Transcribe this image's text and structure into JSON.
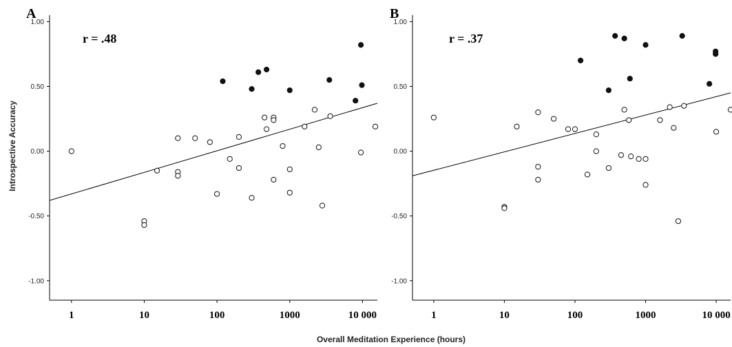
{
  "figure": {
    "ylabel": "Introspective Accuracy",
    "xlabel": "Overall Meditation Experience (hours)"
  },
  "chart_data": [
    {
      "type": "scatter",
      "panel_label": "A",
      "annotation": "r = .48",
      "x_scale": "log",
      "xlim": [
        0.5,
        16000
      ],
      "ylim": [
        -1.15,
        1.05
      ],
      "x_ticks": [
        1,
        10,
        100,
        1000,
        10000
      ],
      "x_tick_labels": [
        "1",
        "10",
        "100",
        "1000",
        "10 000"
      ],
      "y_ticks": [
        1.0,
        0.5,
        0.0,
        -0.5,
        -1.0
      ],
      "y_tick_labels": [
        "1.00",
        "0.50",
        "0.00",
        "-0.50",
        "-1.00"
      ],
      "grid": false,
      "regression_line": {
        "x": [
          0.5,
          16000
        ],
        "y": [
          -0.38,
          0.37
        ]
      },
      "series": [
        {
          "marker": "filled",
          "points": [
            [
              120,
              0.54
            ],
            [
              300,
              0.48
            ],
            [
              370,
              0.61
            ],
            [
              480,
              0.63
            ],
            [
              1000,
              0.47
            ],
            [
              3500,
              0.55
            ],
            [
              8000,
              0.39
            ],
            [
              9500,
              0.82
            ],
            [
              9800,
              0.51
            ]
          ]
        },
        {
          "marker": "open",
          "points": [
            [
              1,
              0.0
            ],
            [
              10,
              -0.54
            ],
            [
              10,
              -0.57
            ],
            [
              15,
              -0.15
            ],
            [
              29,
              0.1
            ],
            [
              29,
              -0.16
            ],
            [
              29,
              -0.19
            ],
            [
              50,
              0.1
            ],
            [
              80,
              0.07
            ],
            [
              100,
              -0.33
            ],
            [
              150,
              -0.06
            ],
            [
              200,
              0.11
            ],
            [
              200,
              -0.13
            ],
            [
              300,
              -0.36
            ],
            [
              450,
              0.26
            ],
            [
              480,
              0.17
            ],
            [
              600,
              0.26
            ],
            [
              600,
              0.24
            ],
            [
              600,
              -0.22
            ],
            [
              800,
              0.04
            ],
            [
              1000,
              -0.14
            ],
            [
              1000,
              -0.32
            ],
            [
              1600,
              0.19
            ],
            [
              2200,
              0.32
            ],
            [
              2500,
              0.03
            ],
            [
              2800,
              -0.42
            ],
            [
              3600,
              0.27
            ],
            [
              9500,
              -0.01
            ],
            [
              15000,
              0.19
            ]
          ]
        }
      ]
    },
    {
      "type": "scatter",
      "panel_label": "B",
      "annotation": "r = .37",
      "x_scale": "log",
      "xlim": [
        0.5,
        16000
      ],
      "ylim": [
        -1.15,
        1.05
      ],
      "x_ticks": [
        1,
        10,
        100,
        1000,
        10000
      ],
      "x_tick_labels": [
        "1",
        "10",
        "100",
        "1000",
        "10 000"
      ],
      "y_ticks": [
        1.0,
        0.5,
        0.0,
        -0.5,
        -1.0
      ],
      "y_tick_labels": [
        "1.00",
        "0.50",
        "0.00",
        "-0.50",
        "-1.00"
      ],
      "grid": false,
      "regression_line": {
        "x": [
          0.5,
          16000
        ],
        "y": [
          -0.19,
          0.45
        ]
      },
      "series": [
        {
          "marker": "filled",
          "points": [
            [
              120,
              0.7
            ],
            [
              300,
              0.47
            ],
            [
              370,
              0.89
            ],
            [
              500,
              0.87
            ],
            [
              600,
              0.56
            ],
            [
              1000,
              0.82
            ],
            [
              3300,
              0.89
            ],
            [
              8000,
              0.52
            ],
            [
              9800,
              0.77
            ],
            [
              9800,
              0.75
            ]
          ]
        },
        {
          "marker": "open",
          "points": [
            [
              1,
              0.26
            ],
            [
              10,
              -0.43
            ],
            [
              10,
              -0.44
            ],
            [
              15,
              0.19
            ],
            [
              30,
              0.3
            ],
            [
              30,
              -0.12
            ],
            [
              30,
              -0.22
            ],
            [
              50,
              0.25
            ],
            [
              80,
              0.17
            ],
            [
              100,
              0.17
            ],
            [
              150,
              -0.18
            ],
            [
              200,
              0.13
            ],
            [
              200,
              0.0
            ],
            [
              300,
              -0.13
            ],
            [
              450,
              -0.03
            ],
            [
              500,
              0.32
            ],
            [
              580,
              0.24
            ],
            [
              620,
              -0.04
            ],
            [
              800,
              -0.06
            ],
            [
              1000,
              -0.06
            ],
            [
              1000,
              -0.26
            ],
            [
              1600,
              0.24
            ],
            [
              2200,
              0.34
            ],
            [
              2500,
              0.18
            ],
            [
              2900,
              -0.54
            ],
            [
              3500,
              0.35
            ],
            [
              10000,
              0.15
            ],
            [
              16000,
              0.32
            ]
          ]
        }
      ]
    }
  ]
}
